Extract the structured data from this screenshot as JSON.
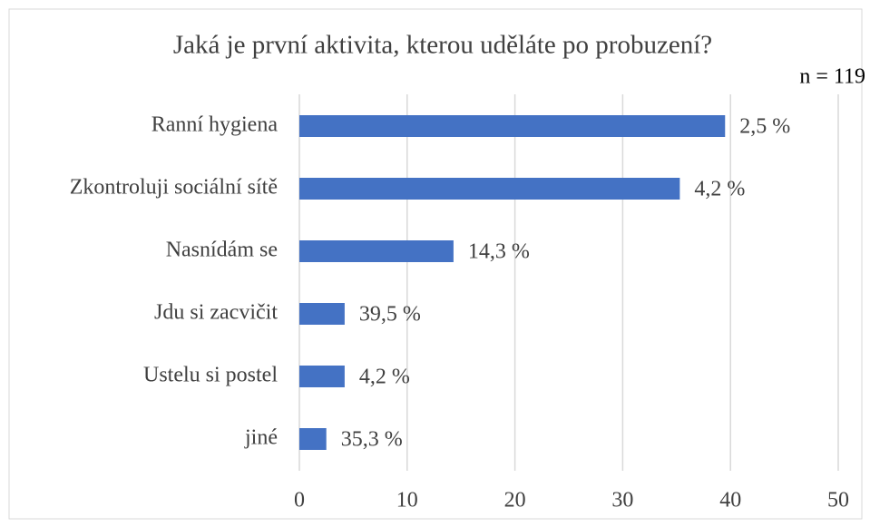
{
  "chart_data": {
    "type": "bar",
    "orientation": "horizontal",
    "title": "Jaká je první aktivita, kterou uděláte po probuzení?",
    "subtitle": "n = 119",
    "categories": [
      "Ranní hygiena",
      "Zkontroluji sociální sítě",
      "Nasnídám se",
      "Jdu si zacvičit",
      "Ustelu si postel",
      "jiné"
    ],
    "values": [
      39.5,
      35.3,
      14.3,
      4.2,
      4.2,
      2.5
    ],
    "annotations": [
      "2,5 %",
      "4,2 %",
      "14,3 %",
      "39,5 %",
      "4,2 %",
      "35,3 %"
    ],
    "color": "#4472c4",
    "xlim": [
      0,
      50
    ],
    "xticks": [
      0,
      10,
      20,
      30,
      40,
      50
    ],
    "grid": true
  }
}
